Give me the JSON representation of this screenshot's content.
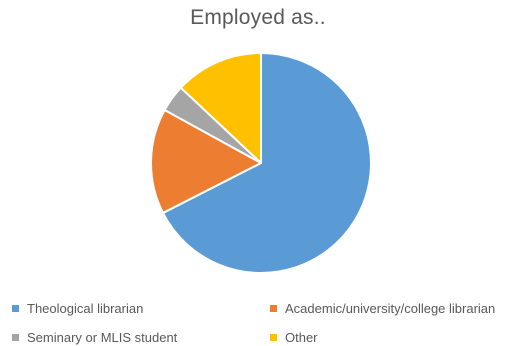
{
  "chart_data": {
    "type": "pie",
    "title": "Employed as..",
    "categories": [
      "Theological librarian",
      "Academic/university/college librarian",
      "Seminary or MLIS student",
      "Other"
    ],
    "values": [
      67.5,
      15.5,
      4.0,
      13.0
    ],
    "unit": "percent (estimated share)",
    "colors": [
      "#5B9BD5",
      "#ED7D31",
      "#A5A5A5",
      "#FFC000"
    ],
    "start_angle": "12 o'clock",
    "direction": "clockwise",
    "slice_border_color": "#ffffff",
    "legend_position": "bottom",
    "data_labels": "none"
  }
}
